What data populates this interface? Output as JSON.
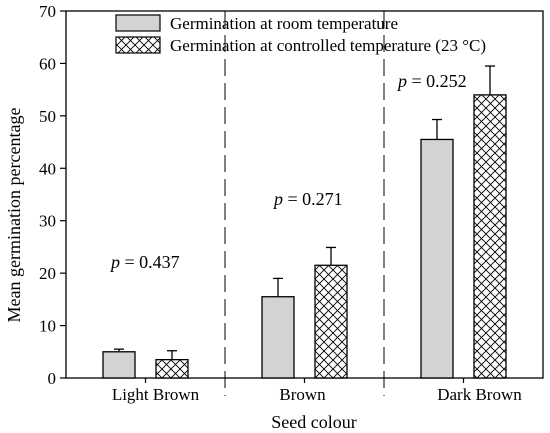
{
  "chart_data": {
    "type": "bar",
    "categories": [
      "Light Brown",
      "Brown",
      "Dark Brown"
    ],
    "series": [
      {
        "name": "Germination at room temperature",
        "values": [
          5.0,
          15.5,
          45.5
        ],
        "errors": [
          0.5,
          3.5,
          3.8
        ],
        "fill": "#d3d3d3",
        "pattern": "solid"
      },
      {
        "name": "Germination at controlled temperature (23 °C)",
        "values": [
          3.5,
          21.5,
          54.0
        ],
        "errors": [
          1.7,
          3.4,
          5.5
        ],
        "fill": "#ffffff",
        "pattern": "crosshatch"
      }
    ],
    "xlabel": "Seed colour",
    "ylabel": "Mean germination percentage",
    "ylim": [
      0,
      70
    ],
    "yticks": [
      0,
      10,
      20,
      30,
      40,
      50,
      60,
      70
    ],
    "annotations": [
      {
        "italic": "p",
        "text": " = 0.437",
        "y": 21
      },
      {
        "italic": "p",
        "text": " = 0.271",
        "y": 33
      },
      {
        "italic": "p",
        "text": " = 0.252",
        "y": 55.5
      }
    ],
    "legend_position": "top-left",
    "grid": false,
    "group_dividers": "dashed"
  }
}
